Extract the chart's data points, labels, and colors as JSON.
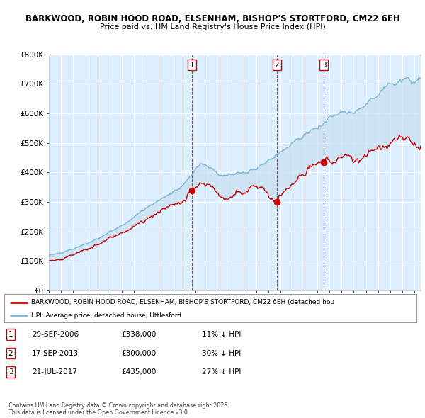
{
  "title_line1": "BARKWOOD, ROBIN HOOD ROAD, ELSENHAM, BISHOP'S STORTFORD, CM22 6EH",
  "title_line2": "Price paid vs. HM Land Registry's House Price Index (HPI)",
  "background_color": "#ffffff",
  "plot_bg_color": "#ddeeff",
  "grid_color": "#ffffff",
  "hpi_color": "#7ab3d4",
  "hpi_fill_color": "#c8dff0",
  "price_color": "#cc0000",
  "ylim": [
    0,
    800000
  ],
  "yticks": [
    0,
    100000,
    200000,
    300000,
    400000,
    500000,
    600000,
    700000,
    800000
  ],
  "ytick_labels": [
    "£0",
    "£100K",
    "£200K",
    "£300K",
    "£400K",
    "£500K",
    "£600K",
    "£700K",
    "£800K"
  ],
  "sale_markers": [
    {
      "year": 2006.75,
      "price": 338000,
      "label": "1"
    },
    {
      "year": 2013.71,
      "price": 300000,
      "label": "2"
    },
    {
      "year": 2017.55,
      "price": 435000,
      "label": "3"
    }
  ],
  "legend_entries": [
    "BARKWOOD, ROBIN HOOD ROAD, ELSENHAM, BISHOP'S STORTFORD, CM22 6EH (detached hou",
    "HPI: Average price, detached house, Uttlesford"
  ],
  "table_data": [
    {
      "num": "1",
      "date": "29-SEP-2006",
      "price": "£338,000",
      "hpi": "11% ↓ HPI"
    },
    {
      "num": "2",
      "date": "17-SEP-2013",
      "price": "£300,000",
      "hpi": "30% ↓ HPI"
    },
    {
      "num": "3",
      "date": "21-JUL-2017",
      "price": "£435,000",
      "hpi": "27% ↓ HPI"
    }
  ],
  "footnote": "Contains HM Land Registry data © Crown copyright and database right 2025.\nThis data is licensed under the Open Government Licence v3.0.",
  "xmin": 1995,
  "xmax": 2025.5
}
